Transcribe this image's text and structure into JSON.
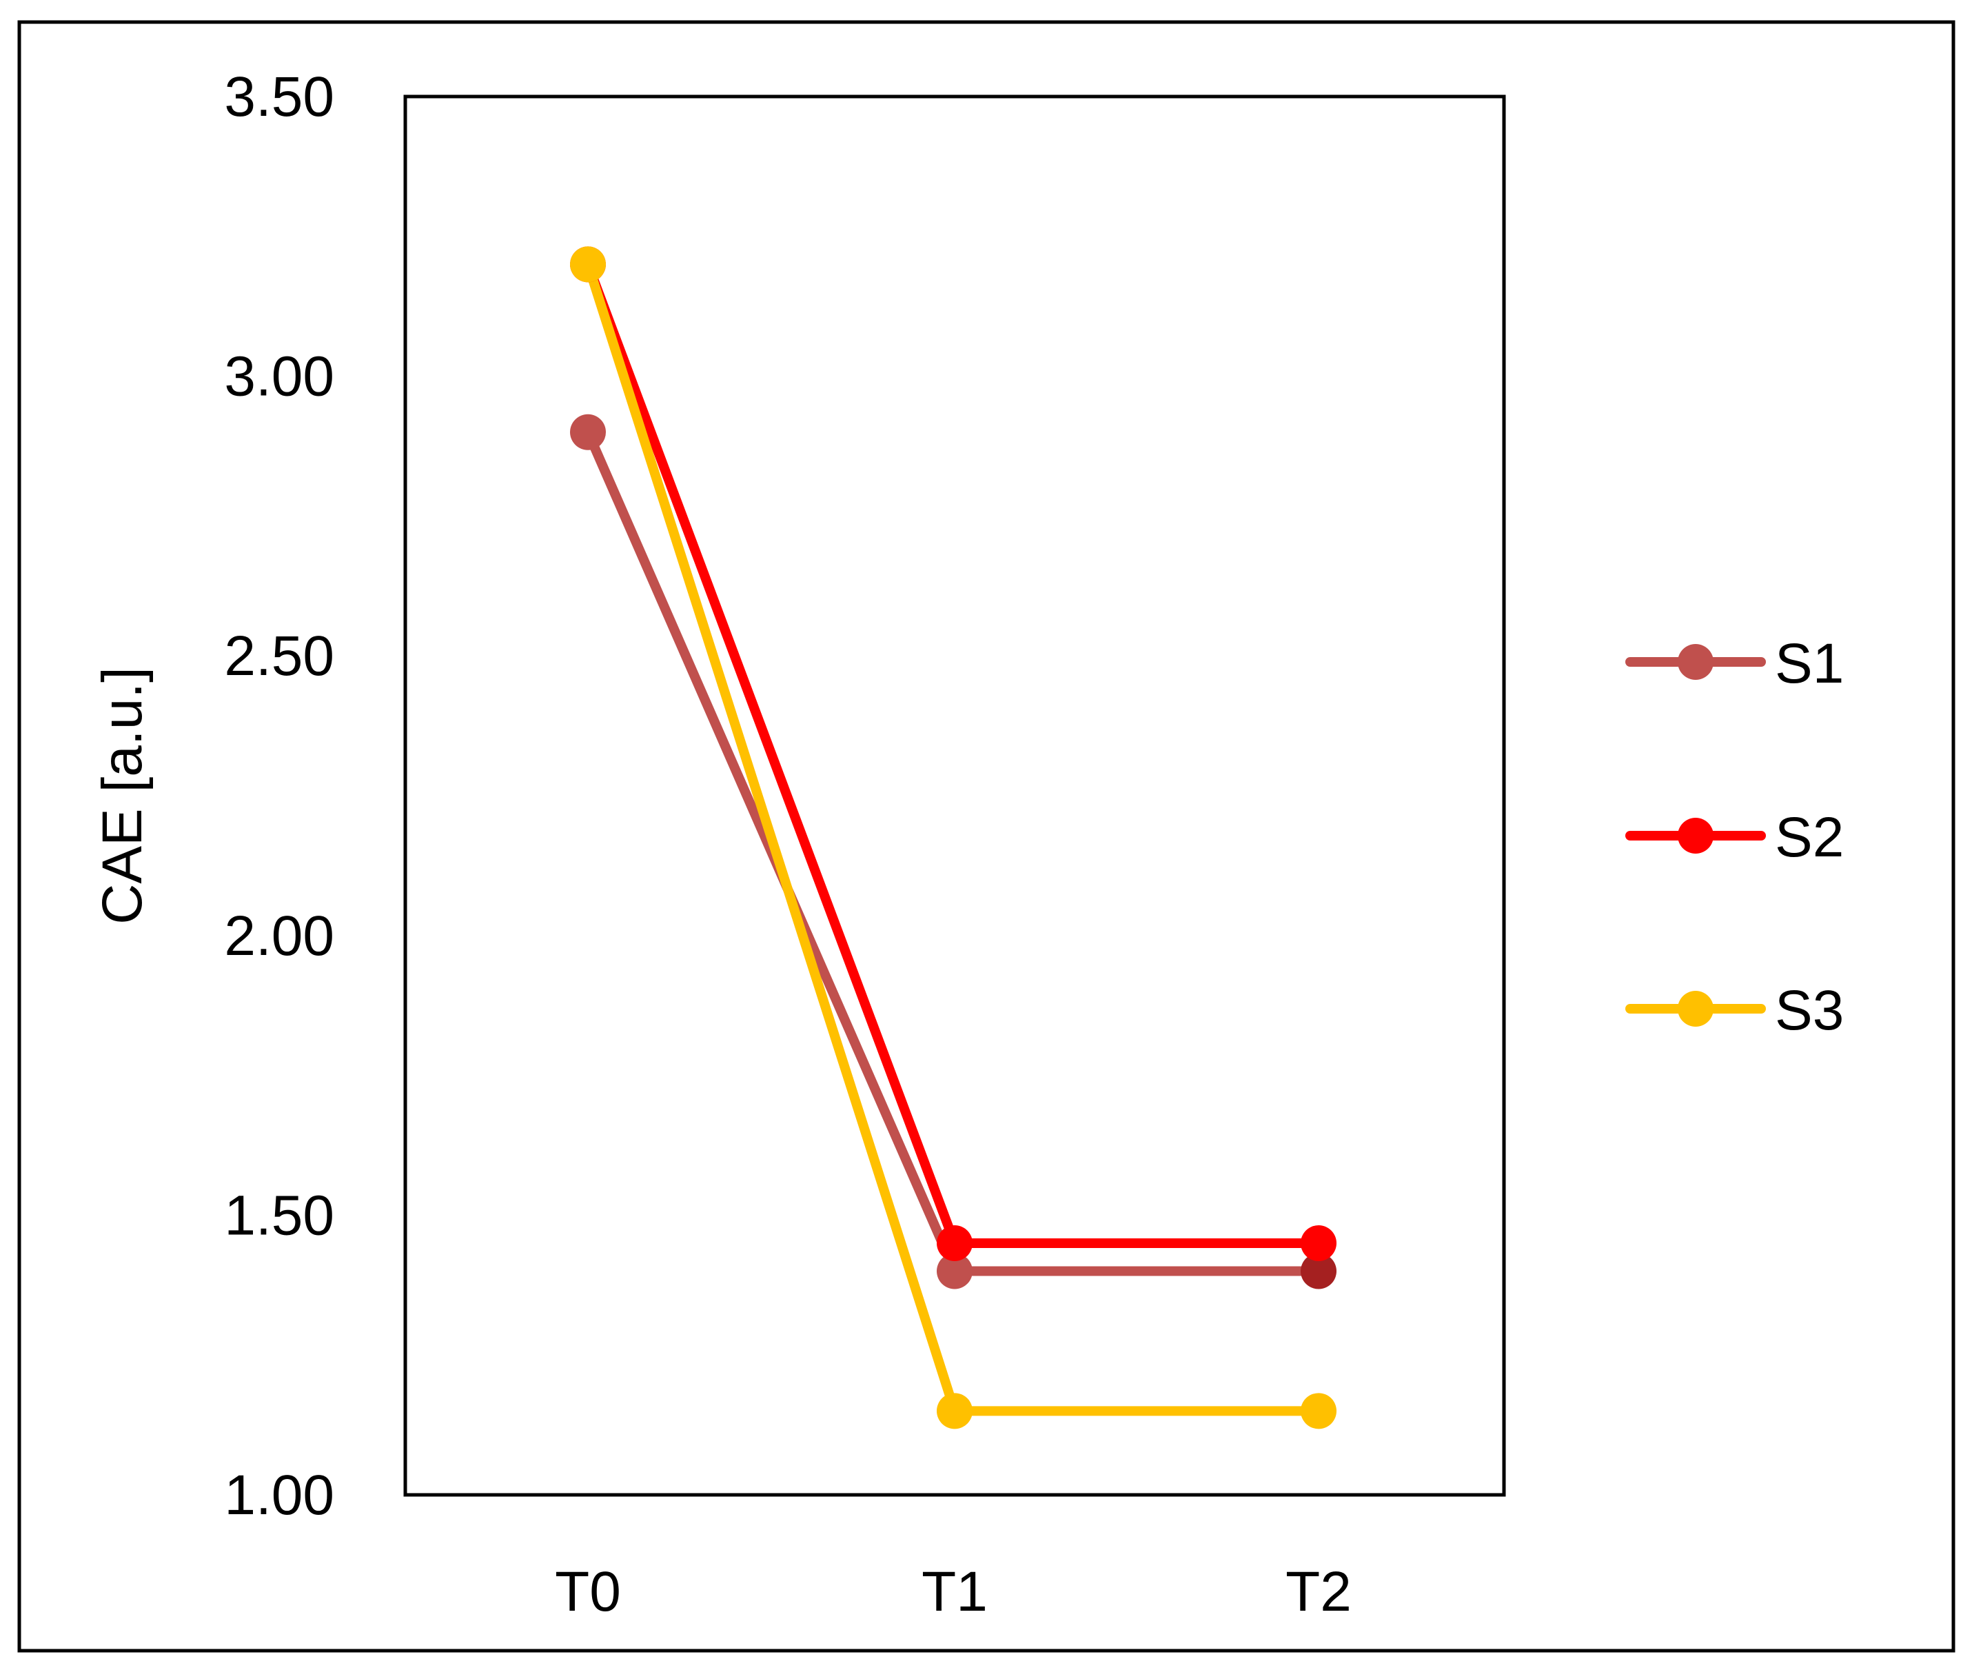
{
  "chart_data": {
    "type": "line",
    "categories": [
      "T0",
      "T1",
      "T2"
    ],
    "ylabel": "CAE [a.u.]",
    "xlabel": "",
    "ylim": [
      1.0,
      3.5
    ],
    "yticks": [
      "1.00",
      "1.50",
      "2.00",
      "2.50",
      "3.00",
      "3.50"
    ],
    "ytick_values": [
      1.0,
      1.5,
      2.0,
      2.5,
      3.0,
      3.5
    ],
    "grid": false,
    "legend_position": "right",
    "series": [
      {
        "name": "S1",
        "values": [
          2.9,
          1.4,
          1.4
        ],
        "color": "#C0504D",
        "end_marker_color": "#A52020"
      },
      {
        "name": "S2",
        "values": [
          3.2,
          1.45,
          1.45
        ],
        "color": "#FF0000"
      },
      {
        "name": "S3",
        "values": [
          3.2,
          1.15,
          1.15
        ],
        "color": "#FFC000"
      }
    ]
  }
}
